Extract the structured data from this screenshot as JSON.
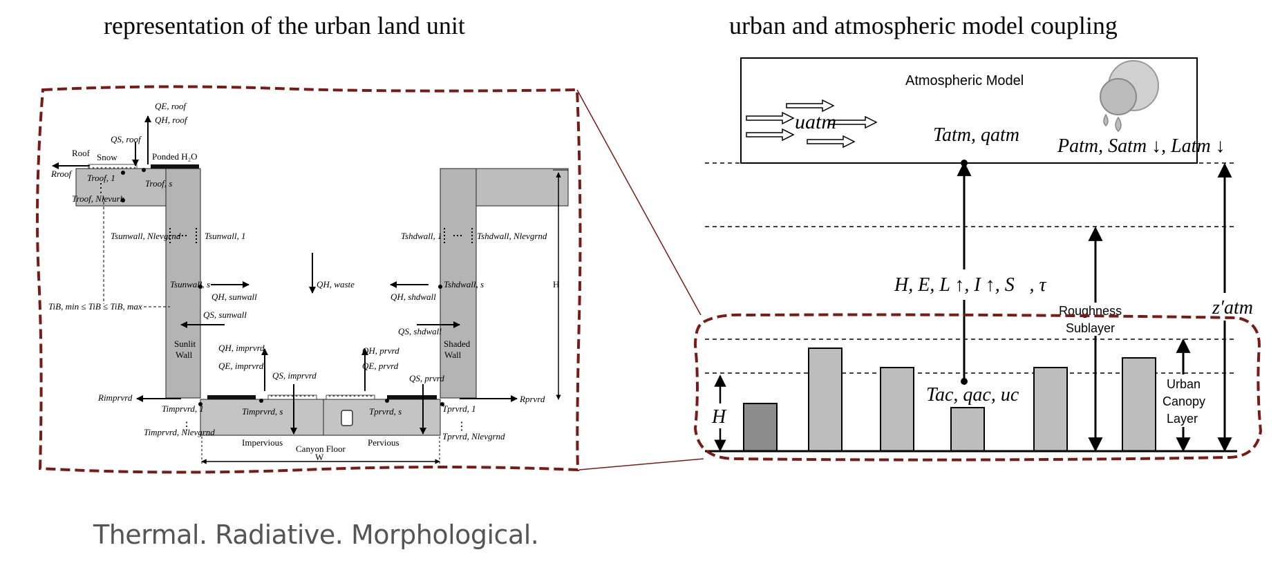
{
  "titles": {
    "left": "representation of the urban land unit",
    "right": "urban and atmospheric model coupling"
  },
  "footer": "Thermal.   Radiative.  Morphological.",
  "left_panel": {
    "labels": {
      "roof": "Roof",
      "snow": "Snow",
      "ponded": "Ponded H₂O",
      "sunlit_wall": [
        "Sunlit",
        "Wall"
      ],
      "shaded_wall": [
        "Shaded",
        "Wall"
      ],
      "impervious": "Impervious",
      "pervious": "Pervious",
      "canyon_floor": "Canyon Floor",
      "W": "W",
      "H": "H",
      "q_s_roof": "Q",
      "q_h_roof": "Q",
      "q_e_roof": "Q"
    },
    "symbols": {
      "qe_roof": "QE, roof",
      "qh_roof": "QH, roof",
      "qs_roof": "QS, roof",
      "r_roof": "Rroof",
      "t_roof_1": "Troof, 1",
      "t_roof_s": "Troof, s",
      "t_roof_n": "Troof, Nlevurb",
      "t_sunwall_n": "Tsunwall, Nlevgrnd",
      "t_sunwall_1": "Tsunwall, 1",
      "t_sunwall_s": "Tsunwall, s",
      "t_shdwall_1": "Tshdwall, 1",
      "t_shdwall_n": "Tshdwall, Nlevgrnd",
      "t_shdwall_s": "Tshdwall, s",
      "q_h_waste": "QH, waste",
      "q_h_sunwall": "QH, sunwall",
      "q_s_sunwall": "QS, sunwall",
      "q_h_shdwall": "QH, shdwall",
      "q_s_shdwall": "QS, shdwall",
      "t_ib": "TiB, min ≤ TiB ≤ TiB, max",
      "q_h_imprvrd": "QH, imprvrd",
      "q_e_imprvrd": "QE, imprvrd",
      "q_s_imprvrd": "QS, imprvrd",
      "q_h_prvrd": "QH, prvrd",
      "q_e_prvrd": "QE, prvrd",
      "q_s_prvrd": "QS, prvrd",
      "r_imprvrd": "Rimprvrd",
      "r_prvrd": "Rprvrd",
      "t_imprvrd_1": "Timprvrd, 1",
      "t_imprvrd_s": "Timprvrd, s",
      "t_imprvrd_n": "Timprvrd, Nlevgrnd",
      "t_prvrd_1": "Tprvrd, 1",
      "t_prvrd_s": "Tprvrd, s",
      "t_prvrd_n": "Tprvrd, Nlevgrnd"
    }
  },
  "right_panel": {
    "atm_model": "Atmospheric Model",
    "u_atm": "uatm",
    "t_atm": "Tatm, qatm",
    "p_atm": "Patm, Satm ↓, Latm ↓",
    "fluxes": "H, E, L ↑, I ↑, S⃗, τ",
    "roughness": [
      "Roughness",
      "Sublayer"
    ],
    "urban_canopy": [
      "Urban",
      "Canopy",
      "Layer"
    ],
    "t_ac": "Tac, qac, uc",
    "H": "H",
    "z_atm": "z′atm"
  },
  "colors": {
    "dashed_border": "#7a1a14",
    "building_fill": "#bdbdbd",
    "building_dark": "#8c8c8c",
    "wall_fill": "#b4b4b4",
    "footer_text": "#555555"
  }
}
